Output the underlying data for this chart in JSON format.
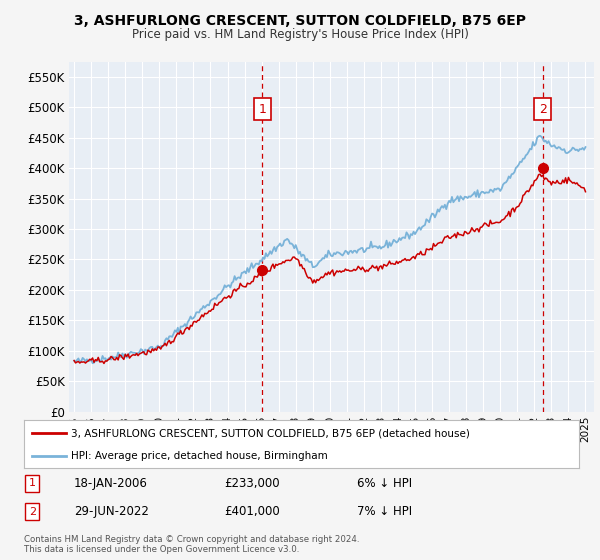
{
  "title": "3, ASHFURLONG CRESCENT, SUTTON COLDFIELD, B75 6EP",
  "subtitle": "Price paid vs. HM Land Registry's House Price Index (HPI)",
  "background_color": "#f5f5f5",
  "plot_bg_color": "#e8eef5",
  "legend_line1": "3, ASHFURLONG CRESCENT, SUTTON COLDFIELD, B75 6EP (detached house)",
  "legend_line2": "HPI: Average price, detached house, Birmingham",
  "annotation1_date": "18-JAN-2006",
  "annotation1_price": "£233,000",
  "annotation1_hpi": "6% ↓ HPI",
  "annotation2_date": "29-JUN-2022",
  "annotation2_price": "£401,000",
  "annotation2_hpi": "7% ↓ HPI",
  "footer": "Contains HM Land Registry data © Crown copyright and database right 2024.\nThis data is licensed under the Open Government Licence v3.0.",
  "hpi_color": "#7ab3d9",
  "price_color": "#cc0000",
  "ylim": [
    0,
    575000
  ],
  "yticks": [
    0,
    50000,
    100000,
    150000,
    200000,
    250000,
    300000,
    350000,
    400000,
    450000,
    500000,
    550000
  ],
  "xlim_start": 1994.7,
  "xlim_end": 2025.5,
  "sale1_x": 2006.05,
  "sale1_y": 233000,
  "sale2_x": 2022.49,
  "sale2_y": 401000
}
